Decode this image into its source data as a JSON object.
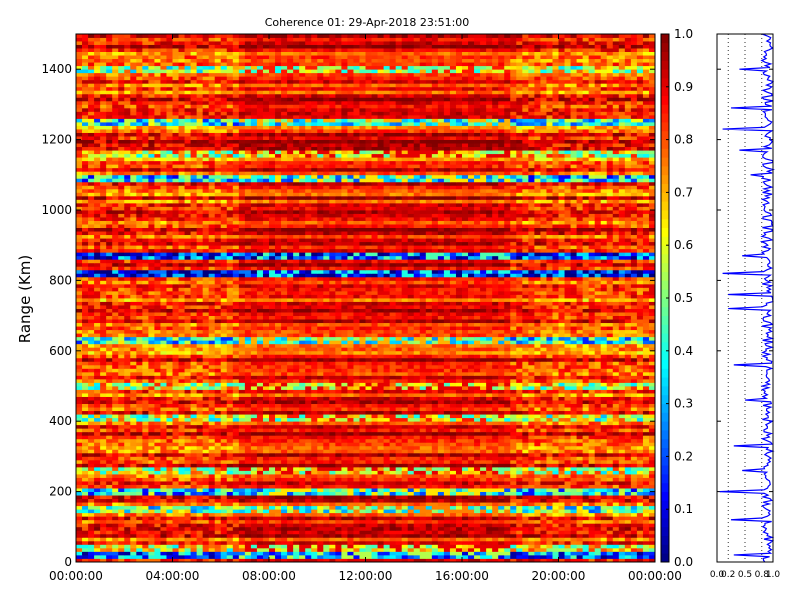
{
  "chart_data": [
    {
      "type": "heatmap",
      "title": "Coherence 01: 29-Apr-2018 23:51:00",
      "xlabel": "",
      "ylabel": "Range (Km)",
      "x_ticks": [
        "00:00:00",
        "04:00:00",
        "08:00:00",
        "12:00:00",
        "16:00:00",
        "20:00:00",
        "00:00:00"
      ],
      "y_ticks": [
        0,
        200,
        400,
        600,
        800,
        1000,
        1200,
        1400
      ],
      "xlim": [
        "00:00:00",
        "00:00:00"
      ],
      "ylim": [
        0,
        1500
      ],
      "colormap": "jet",
      "colorbar": {
        "ticks": [
          "0.0",
          "0.1",
          "0.2",
          "0.3",
          "0.4",
          "0.5",
          "0.6",
          "0.7",
          "0.8",
          "0.9",
          "1.0"
        ],
        "range": [
          0.0,
          1.0
        ]
      },
      "time_segments": [
        {
          "start": "00:00:00",
          "end": "06:52:00",
          "base_coherence": 0.86
        },
        {
          "start": "06:52:00",
          "end": "17:58:00",
          "base_coherence": 0.92
        },
        {
          "start": "17:58:00",
          "end": "00:00:00",
          "base_coherence": 0.86
        }
      ],
      "range_bands": [
        {
          "range_km": 20,
          "coherence": 0.25
        },
        {
          "range_km": 40,
          "coherence": 0.6
        },
        {
          "range_km": 150,
          "coherence": 0.45
        },
        {
          "range_km": 200,
          "coherence": 0.35
        },
        {
          "range_km": 260,
          "coherence": 0.6
        },
        {
          "range_km": 410,
          "coherence": 0.55
        },
        {
          "range_km": 500,
          "coherence": 0.6
        },
        {
          "range_km": 630,
          "coherence": 0.4
        },
        {
          "range_km": 820,
          "coherence": 0.1
        },
        {
          "range_km": 870,
          "coherence": 0.15
        },
        {
          "range_km": 1090,
          "coherence": 0.35
        },
        {
          "range_km": 1160,
          "coherence": 0.6
        },
        {
          "range_km": 1250,
          "coherence": 0.4
        },
        {
          "range_km": 1400,
          "coherence": 0.55
        }
      ],
      "grid": false
    },
    {
      "type": "line",
      "orientation": "vertical",
      "x_ticks": [
        "0.0",
        "0.2",
        "0.5",
        "0.8",
        "1.0"
      ],
      "xlim": [
        0.0,
        1.0
      ],
      "ylim": [
        0,
        1500
      ],
      "grid": true,
      "profile_drops": [
        {
          "range_km": 20,
          "value": 0.3
        },
        {
          "range_km": 120,
          "value": 0.25
        },
        {
          "range_km": 200,
          "value": 0.05
        },
        {
          "range_km": 260,
          "value": 0.45
        },
        {
          "range_km": 330,
          "value": 0.3
        },
        {
          "range_km": 460,
          "value": 0.5
        },
        {
          "range_km": 560,
          "value": 0.3
        },
        {
          "range_km": 720,
          "value": 0.2
        },
        {
          "range_km": 760,
          "value": 0.2
        },
        {
          "range_km": 820,
          "value": 0.1
        },
        {
          "range_km": 870,
          "value": 0.45
        },
        {
          "range_km": 1100,
          "value": 0.6
        },
        {
          "range_km": 1170,
          "value": 0.4
        },
        {
          "range_km": 1230,
          "value": 0.1
        },
        {
          "range_km": 1290,
          "value": 0.25
        },
        {
          "range_km": 1400,
          "value": 0.4
        }
      ]
    }
  ]
}
